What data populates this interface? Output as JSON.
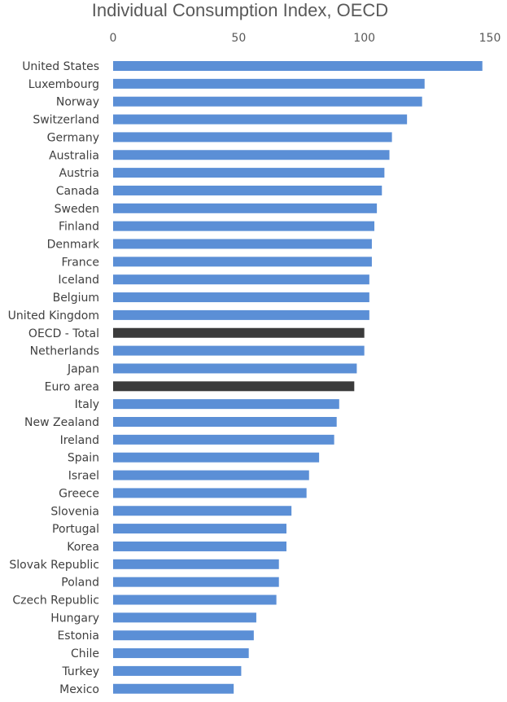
{
  "colors": {
    "bar": "#5b8fd6",
    "highlight": "#3b3b3b",
    "text": "#404040",
    "title": "#595959"
  },
  "chart_data": {
    "type": "bar",
    "orientation": "horizontal",
    "title": "Individual Consumption Index, OECD",
    "xlabel": "",
    "ylabel": "",
    "xlim": [
      0,
      150
    ],
    "x_ticks": [
      0,
      50,
      100,
      150
    ],
    "x_axis_position": "top",
    "grid": false,
    "legend": "none",
    "highlighted": [
      "OECD - Total",
      "Euro area"
    ],
    "categories": [
      "United States",
      "Luxembourg",
      "Norway",
      "Switzerland",
      "Germany",
      "Australia",
      "Austria",
      "Canada",
      "Sweden",
      "Finland",
      "Denmark",
      "France",
      "Iceland",
      "Belgium",
      "United Kingdom",
      "OECD - Total",
      "Netherlands",
      "Japan",
      "Euro area",
      "Italy",
      "New Zealand",
      "Ireland",
      "Spain",
      "Israel",
      "Greece",
      "Slovenia",
      "Portugal",
      "Korea",
      "Slovak Republic",
      "Poland",
      "Czech Republic",
      "Hungary",
      "Estonia",
      "Chile",
      "Turkey",
      "Mexico"
    ],
    "values": [
      147,
      124,
      123,
      117,
      111,
      110,
      108,
      107,
      105,
      104,
      103,
      103,
      102,
      102,
      102,
      100,
      100,
      97,
      96,
      90,
      89,
      88,
      82,
      78,
      77,
      71,
      69,
      69,
      66,
      66,
      65,
      57,
      56,
      54,
      51,
      48
    ]
  }
}
